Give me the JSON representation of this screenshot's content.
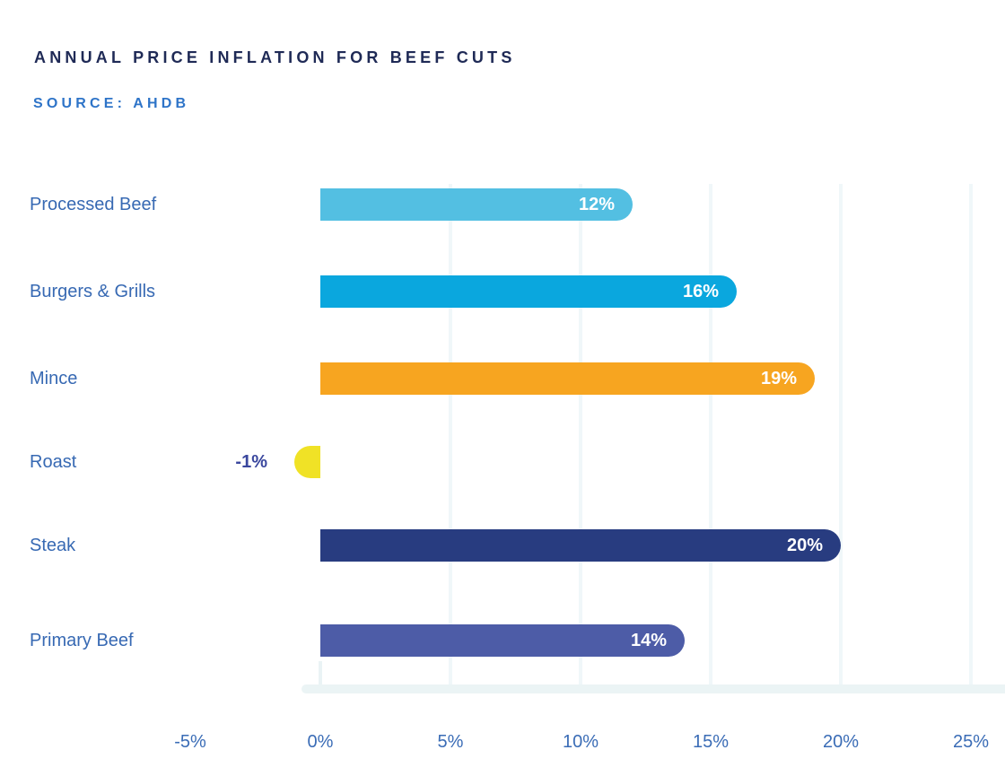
{
  "header": {
    "title": "ANNUAL PRICE INFLATION FOR BEEF CUTS",
    "source": "SOURCE: AHDB"
  },
  "chart_data": {
    "type": "bar",
    "orientation": "horizontal",
    "title": "ANNUAL PRICE INFLATION FOR BEEF CUTS",
    "subtitle": "SOURCE: AHDB",
    "categories": [
      "Processed Beef",
      "Burgers & Grills",
      "Mince",
      "Roast",
      "Steak",
      "Primary Beef"
    ],
    "values": [
      12,
      16,
      19,
      -1,
      20,
      14
    ],
    "value_labels": [
      "12%",
      "16%",
      "19%",
      "-1%",
      "20%",
      "14%"
    ],
    "bar_colors": [
      "#53bfe2",
      "#0aa7de",
      "#f7a520",
      "#f0e226",
      "#283c80",
      "#4d5ca7"
    ],
    "xlabel": "",
    "ylabel": "",
    "xlim": [
      -5,
      25
    ],
    "x_ticks": [
      {
        "label": "-5%",
        "value": -5
      },
      {
        "label": "0%",
        "value": 0
      },
      {
        "label": "5%",
        "value": 5
      },
      {
        "label": "10%",
        "value": 10
      },
      {
        "label": "15%",
        "value": 15
      },
      {
        "label": "20%",
        "value": 20
      },
      {
        "label": "25%",
        "value": 25
      }
    ],
    "gridline_values": [
      5,
      10,
      15,
      20,
      25
    ],
    "grid": "vertical-light",
    "legend": "none"
  },
  "colors": {
    "title_text": "#1f2a56",
    "source_text": "#2e74c8",
    "category_text": "#3769b3",
    "axis_text": "#3a6cb6",
    "negative_value_text": "#3a479e",
    "value_text_inside": "#ffffff",
    "gridline": "#f0f7f9",
    "baseline": "#ebf4f5",
    "background": "#ffffff"
  }
}
